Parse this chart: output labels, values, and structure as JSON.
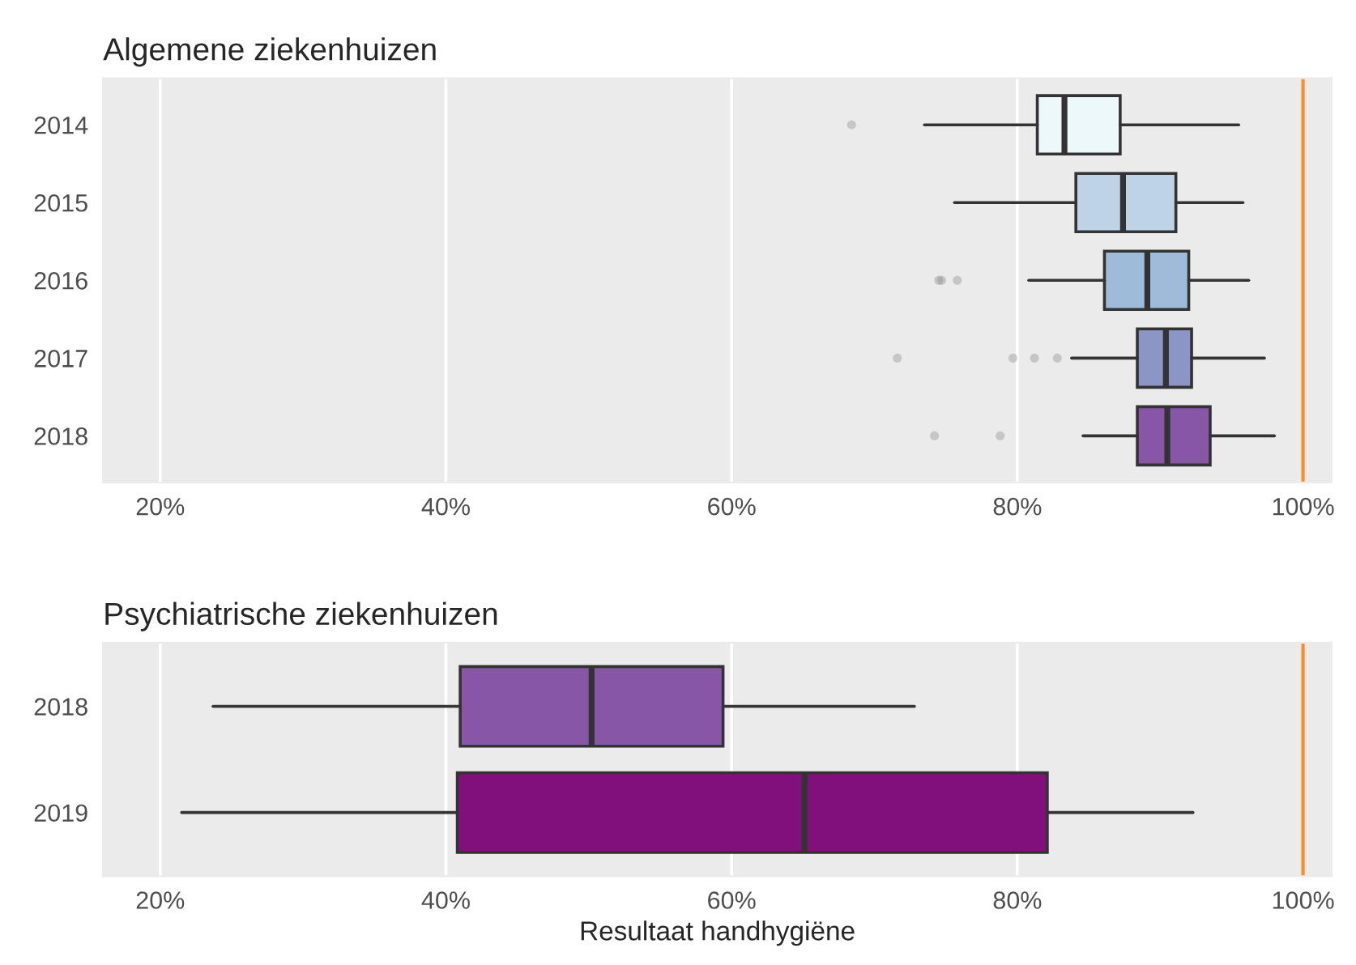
{
  "chart_data": [
    {
      "type": "box",
      "title": "Algemene ziekenhuizen",
      "orientation": "horizontal",
      "categories": [
        "2014",
        "2015",
        "2016",
        "2017",
        "2018"
      ],
      "boxes": [
        {
          "low": 73.5,
          "q1": 81.4,
          "median": 83.3,
          "q3": 87.2,
          "high": 95.5,
          "outliers": [
            68.4
          ]
        },
        {
          "low": 75.6,
          "q1": 84.1,
          "median": 87.4,
          "q3": 91.1,
          "high": 95.8
        },
        {
          "low": 80.8,
          "q1": 86.1,
          "median": 89.1,
          "q3": 92.0,
          "high": 96.2,
          "outliers": [
            74.5,
            74.7,
            75.8
          ]
        },
        {
          "low": 83.8,
          "q1": 88.4,
          "median": 90.4,
          "q3": 92.2,
          "high": 97.3,
          "outliers": [
            71.6,
            79.7,
            81.2,
            82.8
          ]
        },
        {
          "low": 84.6,
          "q1": 88.4,
          "median": 90.5,
          "q3": 93.5,
          "high": 98.0,
          "outliers": [
            74.2,
            78.8
          ]
        }
      ],
      "colors": [
        "#edf8fb",
        "#bfd3e6",
        "#9ebcda",
        "#8c96c6",
        "#8856a7"
      ],
      "xlim": [
        16,
        102
      ],
      "xticks": [
        {
          "value": 20,
          "label": "20%"
        },
        {
          "value": 40,
          "label": "40%"
        },
        {
          "value": 60,
          "label": "60%"
        },
        {
          "value": 80,
          "label": "80%"
        },
        {
          "value": 100,
          "label": "100%"
        }
      ],
      "ref_lines": [
        {
          "axis": "x",
          "value": 100,
          "color": "#ff8c2a"
        }
      ],
      "grid": "x"
    },
    {
      "type": "box",
      "title": "Psychiatrische ziekenhuizen",
      "xlabel": "Resultaat handhygiëne",
      "orientation": "horizontal",
      "categories": [
        "2018",
        "2019"
      ],
      "boxes": [
        {
          "low": 23.7,
          "q1": 41.0,
          "median": 50.2,
          "q3": 59.4,
          "high": 72.8
        },
        {
          "low": 21.5,
          "q1": 40.8,
          "median": 65.1,
          "q3": 82.1,
          "high": 92.3
        }
      ],
      "colors": [
        "#8856a7",
        "#810f7c"
      ],
      "xlim": [
        16,
        102
      ],
      "xticks": [
        {
          "value": 20,
          "label": "20%"
        },
        {
          "value": 40,
          "label": "40%"
        },
        {
          "value": 60,
          "label": "60%"
        },
        {
          "value": 80,
          "label": "80%"
        },
        {
          "value": 100,
          "label": "100%"
        }
      ],
      "ref_lines": [
        {
          "axis": "x",
          "value": 100,
          "color": "#ff8c2a"
        }
      ],
      "grid": "x"
    }
  ]
}
